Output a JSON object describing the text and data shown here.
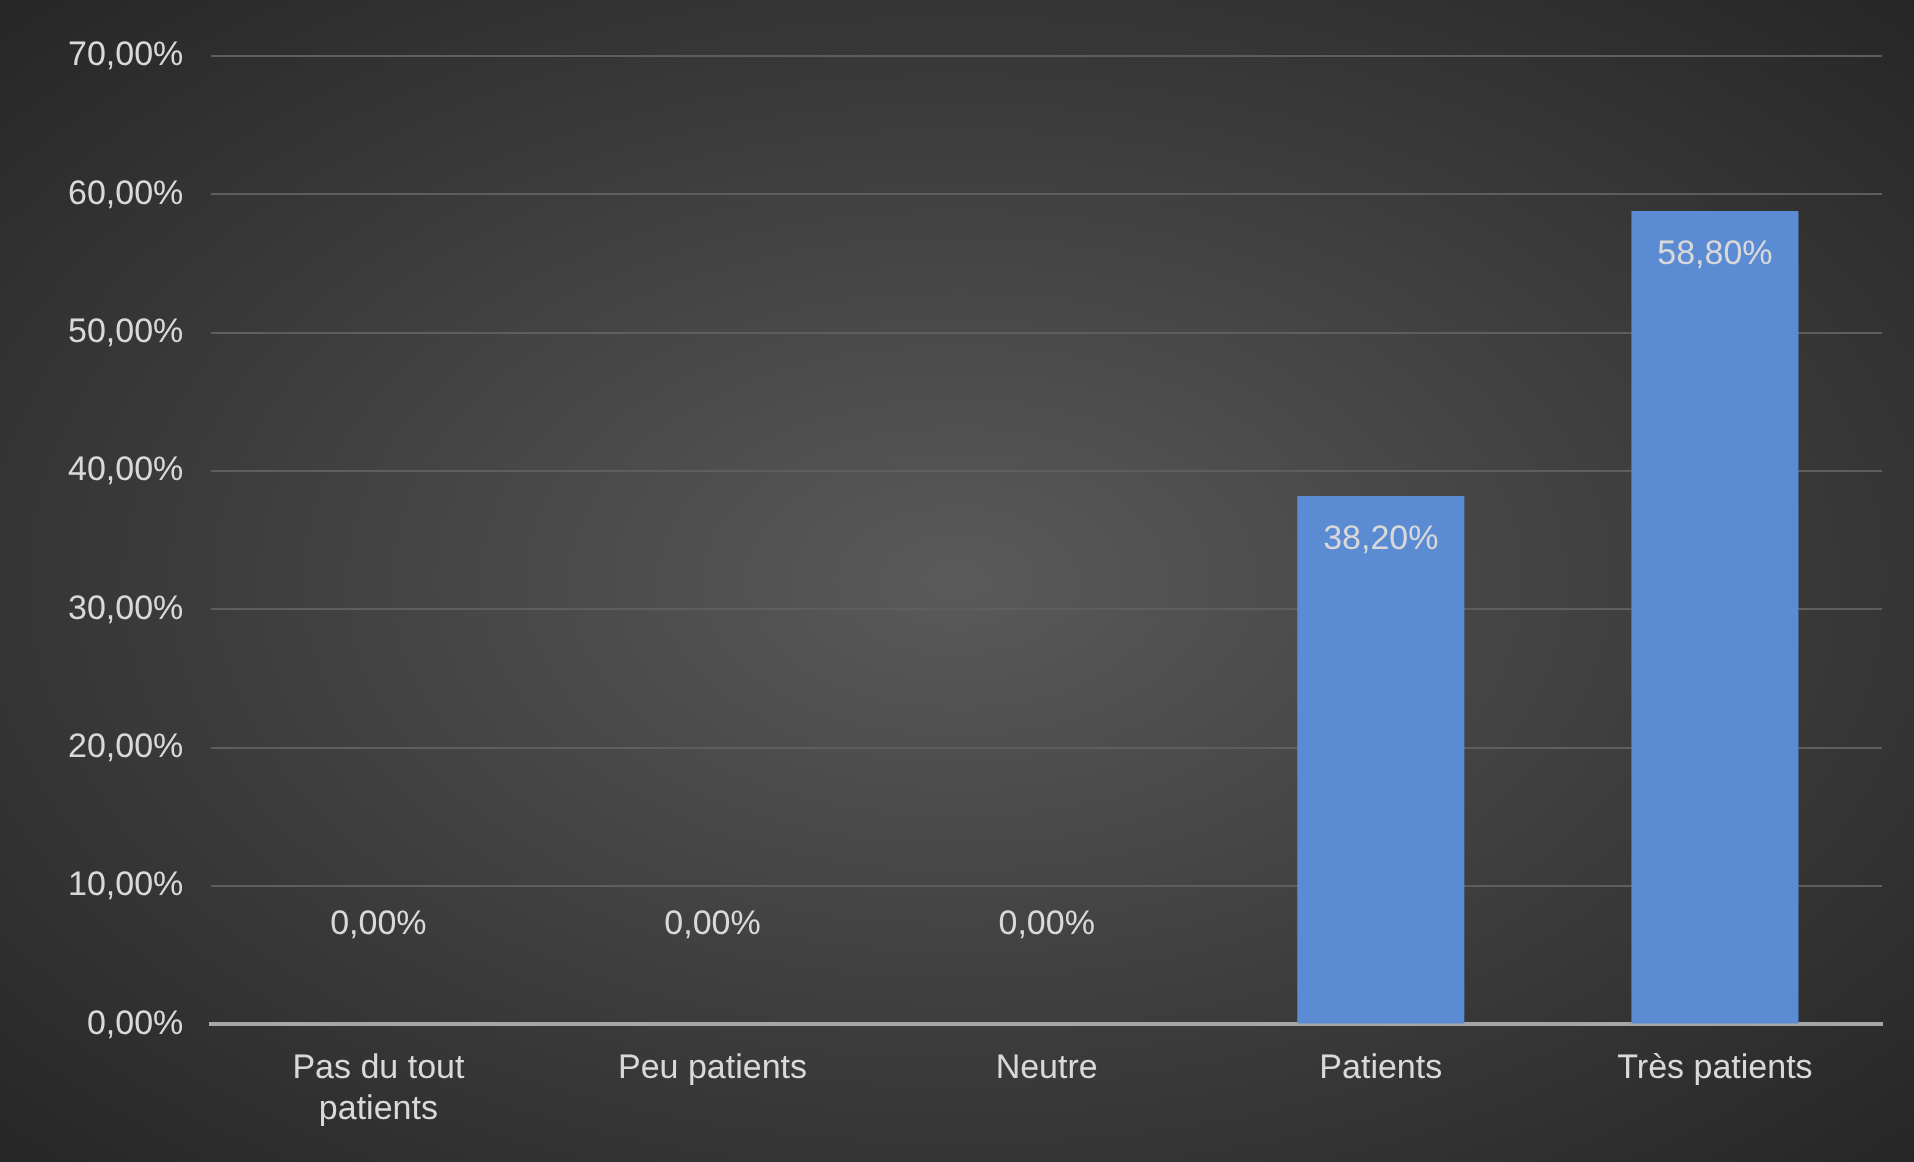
{
  "chart_data": {
    "type": "bar",
    "categories": [
      "Pas du tout patients",
      "Peu patients",
      "Neutre",
      "Patients",
      "Très patients"
    ],
    "values": [
      0,
      0,
      0,
      38.2,
      58.8
    ],
    "value_labels": [
      "0,00%",
      "0,00%",
      "0,00%",
      "38,20%",
      "58,80%"
    ],
    "color": "#5b8bd3",
    "ylim": [
      0,
      70
    ],
    "yticks": [
      {
        "value": 0,
        "label": "0,00%"
      },
      {
        "value": 10,
        "label": "10,00%"
      },
      {
        "value": 20,
        "label": "20,00%"
      },
      {
        "value": 30,
        "label": "30,00%"
      },
      {
        "value": 40,
        "label": "40,00%"
      },
      {
        "value": 50,
        "label": "50,00%"
      },
      {
        "value": 60,
        "label": "60,00%"
      },
      {
        "value": 70,
        "label": "70,00%"
      }
    ],
    "grid": "y",
    "legend": false
  }
}
